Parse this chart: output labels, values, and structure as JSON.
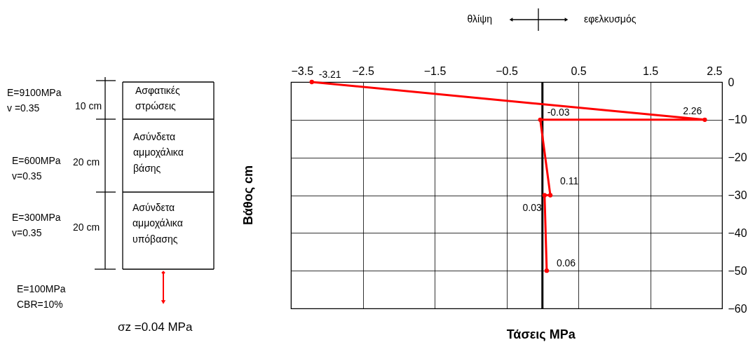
{
  "chart_data": {
    "type": "line",
    "xlabel": "Τάσεις MPa",
    "ylabel": "Βάθος cm",
    "series": [
      {
        "color": "#ff0000",
        "x": [
          -3.21,
          2.26,
          -0.03,
          0.11,
          0.03,
          0.06
        ],
        "values": [
          0,
          -10,
          -10,
          -30,
          -30,
          -50
        ]
      }
    ],
    "xlim": [
      -3.5,
      2.5
    ],
    "xticks": [
      -3.5,
      -2.5,
      -1.5,
      -0.5,
      0.5,
      1.5,
      2.5
    ],
    "ylim": [
      -60,
      0
    ],
    "yticks": [
      0,
      -10,
      -20,
      -30,
      -40,
      -50,
      -60
    ],
    "grid": true,
    "marker": "circle",
    "line_style": "solid",
    "ref_lines": [
      {
        "axis": "x",
        "value": 0,
        "color": "#000000"
      }
    ],
    "annotations": [
      "θλίψη",
      "εφελκυσμός",
      "E=9100MPa\nv =0.35",
      "10 cm",
      "Ασφατικές\nστρώσεις",
      "E=600MPa\nv=0.35",
      "20 cm",
      "Ασύνδετα\nαμμοχάλικα\nβάσης",
      "E=300MPa\nv=0.35",
      "20 cm",
      "Ασύνδετα\nαμμοχάλικα\nυπόβασης",
      "E=100MPa\nCBR=10%",
      "σz =0.04 MPa",
      {
        "text": "-3.21",
        "x": -3.21,
        "y": 0
      },
      {
        "text": "2.26",
        "x": 2.26,
        "y": -10
      },
      {
        "text": "-0.03",
        "x": -0.03,
        "y": -10
      },
      {
        "text": "0.11",
        "x": 0.11,
        "y": -30
      },
      {
        "text": "0.03",
        "x": 0.03,
        "y": -30
      },
      {
        "text": "0.06",
        "x": 0.06,
        "y": -50
      }
    ]
  }
}
